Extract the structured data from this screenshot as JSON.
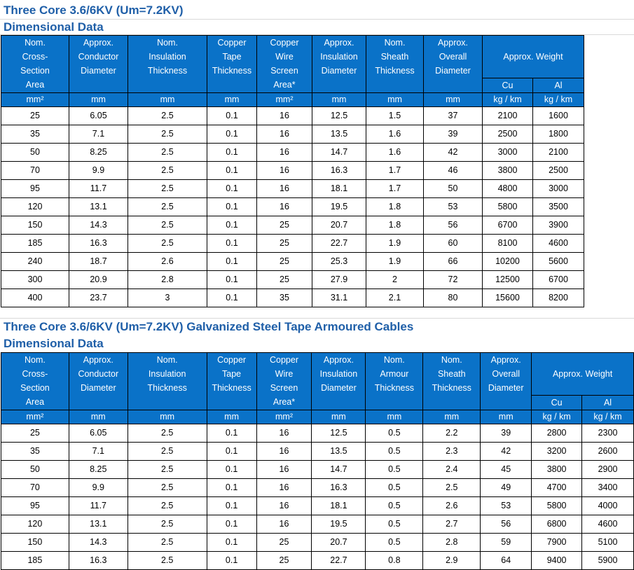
{
  "section1": {
    "title": "Three Core 3.6/6KV (Um=7.2KV)",
    "subtitle": "Dimensional Data",
    "headers": [
      [
        "Nom.",
        "Cross-",
        "Section",
        "Area"
      ],
      [
        "Approx.",
        "Conductor",
        "Diameter"
      ],
      [
        "Nom.",
        "Insulation",
        "Thickness"
      ],
      [
        "Copper",
        "Tape",
        "Thickness"
      ],
      [
        "Copper",
        "Wire",
        "Screen",
        "Area*"
      ],
      [
        "Approx.",
        "Insulation",
        "Diameter"
      ],
      [
        "Nom.",
        "Sheath",
        "Thickness"
      ],
      [
        "Approx.",
        "Overall",
        "Diameter"
      ]
    ],
    "weight_header": "Approx. Weight",
    "weight_sub": [
      "Cu",
      "Al"
    ],
    "units": [
      "mm²",
      "mm",
      "mm",
      "mm",
      "mm²",
      "mm",
      "mm",
      "mm",
      "kg / km",
      "kg / km"
    ],
    "rows": [
      [
        "25",
        "6.05",
        "2.5",
        "0.1",
        "16",
        "12.5",
        "1.5",
        "37",
        "2100",
        "1600"
      ],
      [
        "35",
        "7.1",
        "2.5",
        "0.1",
        "16",
        "13.5",
        "1.6",
        "39",
        "2500",
        "1800"
      ],
      [
        "50",
        "8.25",
        "2.5",
        "0.1",
        "16",
        "14.7",
        "1.6",
        "42",
        "3000",
        "2100"
      ],
      [
        "70",
        "9.9",
        "2.5",
        "0.1",
        "16",
        "16.3",
        "1.7",
        "46",
        "3800",
        "2500"
      ],
      [
        "95",
        "11.7",
        "2.5",
        "0.1",
        "16",
        "18.1",
        "1.7",
        "50",
        "4800",
        "3000"
      ],
      [
        "120",
        "13.1",
        "2.5",
        "0.1",
        "16",
        "19.5",
        "1.8",
        "53",
        "5800",
        "3500"
      ],
      [
        "150",
        "14.3",
        "2.5",
        "0.1",
        "25",
        "20.7",
        "1.8",
        "56",
        "6700",
        "3900"
      ],
      [
        "185",
        "16.3",
        "2.5",
        "0.1",
        "25",
        "22.7",
        "1.9",
        "60",
        "8100",
        "4600"
      ],
      [
        "240",
        "18.7",
        "2.6",
        "0.1",
        "25",
        "25.3",
        "1.9",
        "66",
        "10200",
        "5600"
      ],
      [
        "300",
        "20.9",
        "2.8",
        "0.1",
        "25",
        "27.9",
        "2",
        "72",
        "12500",
        "6700"
      ],
      [
        "400",
        "23.7",
        "3",
        "0.1",
        "35",
        "31.1",
        "2.1",
        "80",
        "15600",
        "8200"
      ]
    ]
  },
  "section2": {
    "title": "Three Core 3.6/6KV (Um=7.2KV) Galvanized Steel Tape Armoured Cables",
    "subtitle": "Dimensional Data",
    "headers": [
      [
        "Nom.",
        "Cross-",
        "Section",
        "Area"
      ],
      [
        "Approx.",
        "Conductor",
        "Diameter"
      ],
      [
        "Nom.",
        "Insulation",
        "Thickness"
      ],
      [
        "Copper",
        "Tape",
        "Thickness"
      ],
      [
        "Copper",
        "Wire",
        "Screen",
        "Area*"
      ],
      [
        "Approx.",
        "Insulation",
        "Diameter"
      ],
      [
        "Nom.",
        "Armour",
        "Thickness"
      ],
      [
        "Nom.",
        "Sheath",
        "Thickness"
      ],
      [
        "Approx.",
        "Overall",
        "Diameter"
      ]
    ],
    "weight_header": "Approx. Weight",
    "weight_sub": [
      "Cu",
      "Al"
    ],
    "units": [
      "mm²",
      "mm",
      "mm",
      "mm",
      "mm²",
      "mm",
      "mm",
      "mm",
      "mm",
      "kg / km",
      "kg / km"
    ],
    "rows": [
      [
        "25",
        "6.05",
        "2.5",
        "0.1",
        "16",
        "12.5",
        "0.5",
        "2.2",
        "39",
        "2800",
        "2300"
      ],
      [
        "35",
        "7.1",
        "2.5",
        "0.1",
        "16",
        "13.5",
        "0.5",
        "2.3",
        "42",
        "3200",
        "2600"
      ],
      [
        "50",
        "8.25",
        "2.5",
        "0.1",
        "16",
        "14.7",
        "0.5",
        "2.4",
        "45",
        "3800",
        "2900"
      ],
      [
        "70",
        "9.9",
        "2.5",
        "0.1",
        "16",
        "16.3",
        "0.5",
        "2.5",
        "49",
        "4700",
        "3400"
      ],
      [
        "95",
        "11.7",
        "2.5",
        "0.1",
        "16",
        "18.1",
        "0.5",
        "2.6",
        "53",
        "5800",
        "4000"
      ],
      [
        "120",
        "13.1",
        "2.5",
        "0.1",
        "16",
        "19.5",
        "0.5",
        "2.7",
        "56",
        "6800",
        "4600"
      ],
      [
        "150",
        "14.3",
        "2.5",
        "0.1",
        "25",
        "20.7",
        "0.5",
        "2.8",
        "59",
        "7900",
        "5100"
      ],
      [
        "185",
        "16.3",
        "2.5",
        "0.1",
        "25",
        "22.7",
        "0.8",
        "2.9",
        "64",
        "9400",
        "5900"
      ]
    ]
  }
}
